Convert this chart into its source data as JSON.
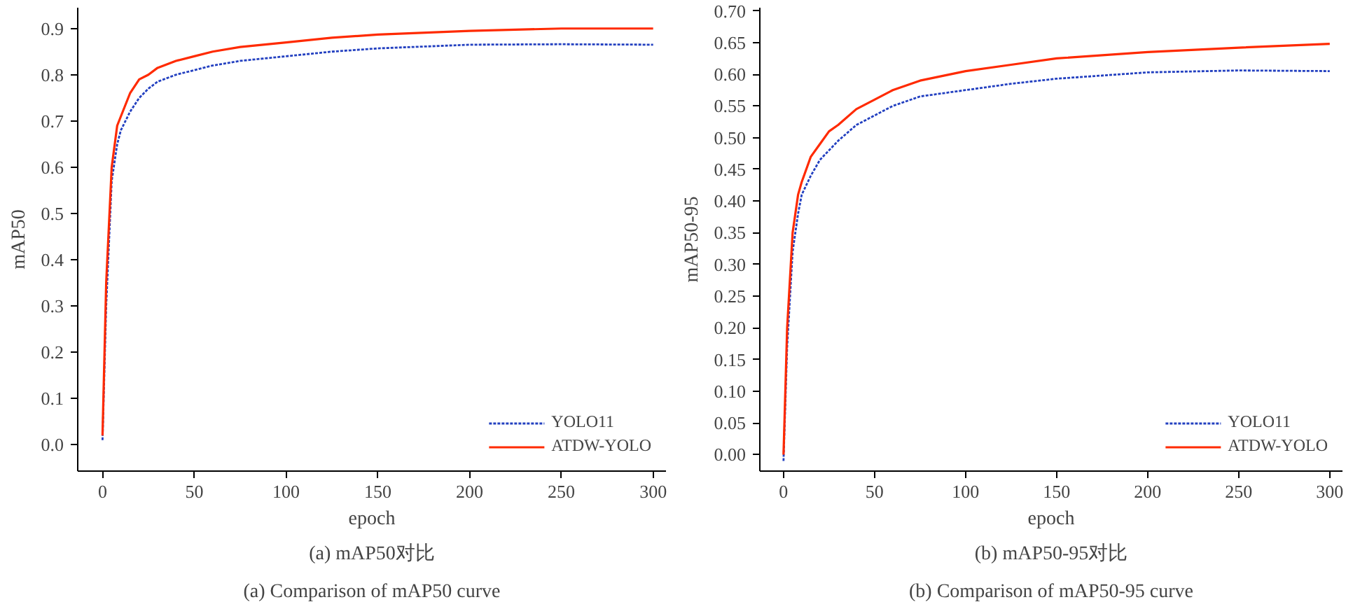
{
  "chart_data": [
    {
      "type": "line",
      "title": "(a) mAP50对比",
      "subtitle": "(a) Comparison of mAP50 curve",
      "xlabel": "epoch",
      "ylabel": "mAP50",
      "xlim": [
        -13.5,
        307
      ],
      "ylim": [
        -0.057,
        0.945
      ],
      "xticks": [
        0,
        50,
        100,
        150,
        200,
        250,
        300
      ],
      "yticks": [
        {
          "value": 0,
          "label": "0.0"
        },
        0.1,
        0.2,
        0.3,
        0.4,
        0.5,
        0.6,
        0.7,
        0.8,
        0.9
      ],
      "grid": false,
      "legend": "bottom right",
      "x": [
        0,
        2,
        5,
        8,
        10,
        15,
        20,
        25,
        30,
        40,
        50,
        60,
        75,
        100,
        125,
        150,
        200,
        250,
        300
      ],
      "series": [
        {
          "name": "YOLO11",
          "color": "#2340c0",
          "line_style": "dotted",
          "values": [
            0.01,
            0.3,
            0.57,
            0.65,
            0.68,
            0.72,
            0.75,
            0.77,
            0.785,
            0.8,
            0.81,
            0.82,
            0.83,
            0.84,
            0.85,
            0.857,
            0.865,
            0.866,
            0.865
          ]
        },
        {
          "name": "ATDW-YOLO",
          "color": "#ff2a00",
          "line_style": "solid",
          "values": [
            0.02,
            0.35,
            0.6,
            0.69,
            0.71,
            0.76,
            0.79,
            0.8,
            0.815,
            0.83,
            0.84,
            0.85,
            0.86,
            0.87,
            0.88,
            0.887,
            0.895,
            0.9,
            0.9
          ]
        }
      ]
    },
    {
      "type": "line",
      "title": "(b) mAP50-95对比",
      "subtitle": "(b) Comparison of mAP50-95 curve",
      "xlabel": "epoch",
      "ylabel": "mAP50-95",
      "xlim": [
        -13,
        307
      ],
      "ylim": [
        -0.026,
        0.705
      ],
      "xticks": [
        0,
        50,
        100,
        150,
        200,
        250,
        300
      ],
      "yticks": [
        {
          "value": 0,
          "label": "0.00"
        },
        {
          "value": 0.05,
          "label": "0.05"
        },
        {
          "value": 0.1,
          "label": "0.10"
        },
        {
          "value": 0.15,
          "label": "0.15"
        },
        {
          "value": 0.2,
          "label": "0.20"
        },
        {
          "value": 0.25,
          "label": "0.25"
        },
        {
          "value": 0.3,
          "label": "0.30"
        },
        {
          "value": 0.35,
          "label": "0.35"
        },
        {
          "value": 0.4,
          "label": "0.40"
        },
        {
          "value": 0.45,
          "label": "0.45"
        },
        {
          "value": 0.5,
          "label": "0.50"
        },
        {
          "value": 0.55,
          "label": "0.55"
        },
        {
          "value": 0.6,
          "label": "0.60"
        },
        {
          "value": 0.65,
          "label": "0.65"
        },
        {
          "value": 0.7,
          "label": "0.70"
        }
      ],
      "grid": false,
      "legend": "bottom right",
      "x": [
        0,
        2,
        5,
        8,
        10,
        15,
        20,
        25,
        30,
        40,
        50,
        60,
        75,
        100,
        125,
        150,
        200,
        250,
        300
      ],
      "series": [
        {
          "name": "YOLO11",
          "color": "#2340c0",
          "line_style": "dotted",
          "values": [
            -0.01,
            0.17,
            0.32,
            0.38,
            0.41,
            0.44,
            0.465,
            0.48,
            0.495,
            0.52,
            0.535,
            0.55,
            0.565,
            0.575,
            0.585,
            0.593,
            0.603,
            0.606,
            0.605
          ]
        },
        {
          "name": "ATDW-YOLO",
          "color": "#ff2a00",
          "line_style": "solid",
          "values": [
            0.0,
            0.2,
            0.35,
            0.41,
            0.43,
            0.47,
            0.49,
            0.51,
            0.52,
            0.545,
            0.56,
            0.575,
            0.59,
            0.605,
            0.615,
            0.625,
            0.635,
            0.642,
            0.648
          ]
        }
      ]
    }
  ]
}
